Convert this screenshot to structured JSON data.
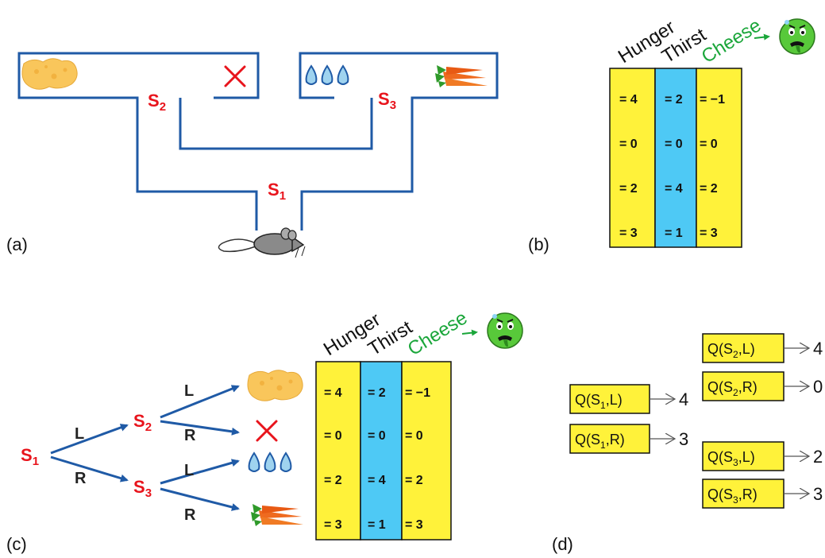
{
  "panels": {
    "a": "(a)",
    "b": "(b)",
    "c": "(c)",
    "d": "(d)"
  },
  "states": {
    "s1": "S",
    "s2": "S",
    "s3": "S",
    "sub1": "1",
    "sub2": "2",
    "sub3": "3"
  },
  "actions": {
    "left": "L",
    "right": "R"
  },
  "table": {
    "headers": [
      "Hunger",
      "Thirst",
      "Cheese"
    ],
    "columns": [
      {
        "name": "Hunger",
        "color": "#fff23a",
        "values": [
          "= 4",
          "= 0",
          "= 2",
          "= 3"
        ]
      },
      {
        "name": "Thirst",
        "color": "#4ec9f5",
        "values": [
          "= 2",
          "= 0",
          "= 4",
          "= 1"
        ]
      },
      {
        "name": "Cheese",
        "color": "#fff23a",
        "values": [
          "= −1",
          "= 0",
          "= 2",
          "= 3"
        ]
      }
    ]
  },
  "q_values": [
    {
      "state": "1",
      "action": "L",
      "value": "4"
    },
    {
      "state": "1",
      "action": "R",
      "value": "3"
    },
    {
      "state": "2",
      "action": "L",
      "value": "4"
    },
    {
      "state": "2",
      "action": "R",
      "value": "0"
    },
    {
      "state": "3",
      "action": "L",
      "value": "2"
    },
    {
      "state": "3",
      "action": "R",
      "value": "3"
    }
  ],
  "icons": [
    "cheese-icon",
    "cross-icon",
    "water-drops-icon",
    "carrots-icon",
    "mouse-icon",
    "sick-face-icon",
    "arrow-icon"
  ],
  "colors": {
    "maze": "#1f5aa6",
    "state": "#e8141c",
    "yellow": "#fff23a",
    "blue": "#4ec9f5",
    "cheese_text": "#1aa63a",
    "tree_arrow": "#1f5aa6"
  }
}
